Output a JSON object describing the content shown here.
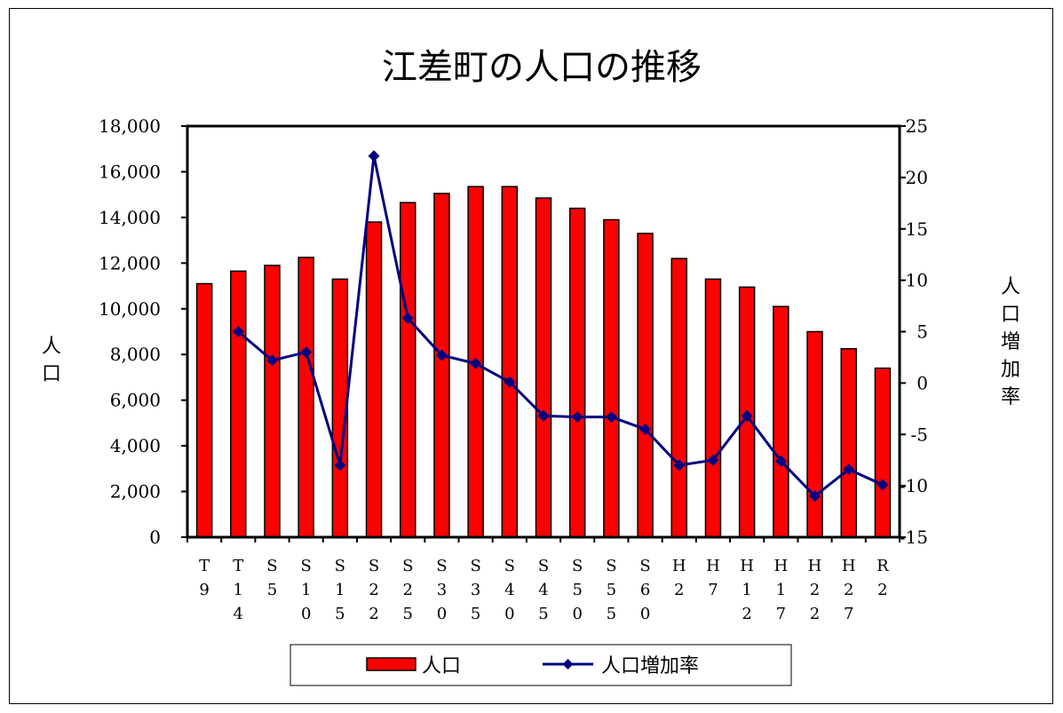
{
  "chart_data": {
    "type": "bar+line",
    "title": "江差町の人口の推移",
    "categories": [
      "T9",
      "T14",
      "S5",
      "S10",
      "S15",
      "S22",
      "S25",
      "S30",
      "S35",
      "S40",
      "S45",
      "S50",
      "S55",
      "S60",
      "H2",
      "H7",
      "H12",
      "H17",
      "H22",
      "H27",
      "R2"
    ],
    "series": [
      {
        "name": "人口",
        "type": "bar",
        "axis": "left",
        "color": "#ff0000",
        "values": [
          11100,
          11650,
          11900,
          12250,
          11300,
          13800,
          14650,
          15050,
          15350,
          15350,
          14850,
          14400,
          13900,
          13300,
          12200,
          11300,
          10950,
          10100,
          9000,
          8250,
          7400
        ]
      },
      {
        "name": "人口増加率",
        "type": "line",
        "axis": "right",
        "color": "#000080",
        "values": [
          null,
          5.0,
          2.2,
          3.0,
          -8.0,
          22.1,
          6.3,
          2.7,
          1.9,
          0.1,
          -3.2,
          -3.3,
          -3.3,
          -4.5,
          -8.0,
          -7.5,
          -3.2,
          -7.6,
          -11.0,
          -8.4,
          -9.9
        ]
      }
    ],
    "left_axis": {
      "label": "人口",
      "min": 0,
      "max": 18000,
      "ticks": [
        "0",
        "2,000",
        "4,000",
        "6,000",
        "8,000",
        "10,000",
        "12,000",
        "14,000",
        "16,000",
        "18,000"
      ]
    },
    "right_axis": {
      "label": "人口増加率",
      "min": -15,
      "max": 25,
      "ticks": [
        "-15",
        "-10",
        "-5",
        "0",
        "5",
        "10",
        "15",
        "20",
        "25"
      ]
    },
    "grid": false,
    "legend_position": "bottom"
  }
}
